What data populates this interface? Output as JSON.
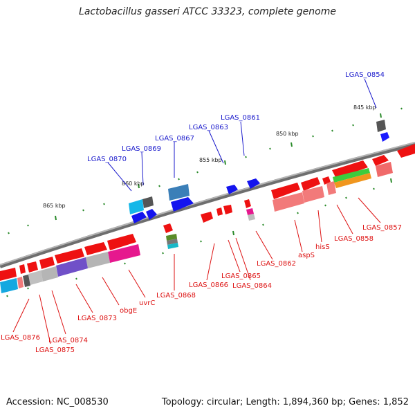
{
  "title": "Lactobacillus gasseri ATCC 33323, complete genome",
  "footer": {
    "accession": "Accession: NC_008530",
    "topology": "Topology: circular; Length: 1,894,360 bp; Genes: 1,852"
  },
  "colors": {
    "forward_gene": "#1010ee",
    "reverse_gene": "#ee1111",
    "backbone": "#808080",
    "tick": "#2a8a2a",
    "label_forward": "#1a1acc",
    "label_reverse": "#dd1111"
  },
  "ruler": {
    "ticks": [
      {
        "label": "845 kbp"
      },
      {
        "label": "850 kbp"
      },
      {
        "label": "855 kbp"
      },
      {
        "label": "860 kbp"
      },
      {
        "label": "865 kbp"
      }
    ]
  },
  "labels": {
    "forward": [
      {
        "text": "LGAS_0854"
      },
      {
        "text": "LGAS_0861"
      },
      {
        "text": "LGAS_0863"
      },
      {
        "text": "LGAS_0867"
      },
      {
        "text": "LGAS_0869"
      },
      {
        "text": "LGAS_0870"
      }
    ],
    "reverse": [
      {
        "text": "LGAS_0857"
      },
      {
        "text": "LGAS_0858"
      },
      {
        "text": "hisS"
      },
      {
        "text": "aspS"
      },
      {
        "text": "LGAS_0862"
      },
      {
        "text": "LGAS_0864"
      },
      {
        "text": "LGAS_0865"
      },
      {
        "text": "LGAS_0866"
      },
      {
        "text": "LGAS_0868"
      },
      {
        "text": "uvrC"
      },
      {
        "text": "obgE"
      },
      {
        "text": "LGAS_0873"
      },
      {
        "text": "LGAS_0874"
      },
      {
        "text": "LGAS_0875"
      },
      {
        "text": "LGAS_0876"
      }
    ]
  }
}
